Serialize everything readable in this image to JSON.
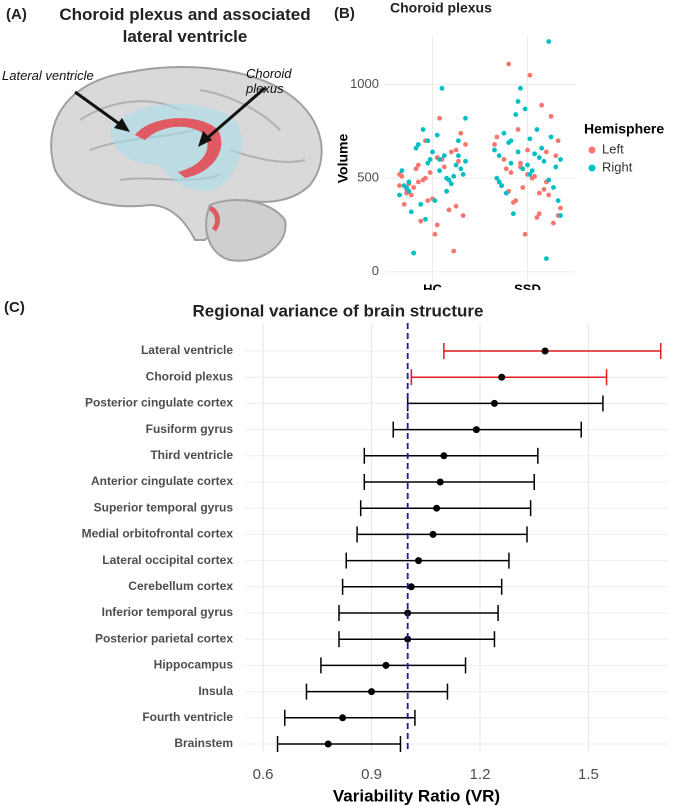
{
  "illustration": {
    "label": "(A)",
    "title": "Choroid plexus and associated lateral ventricle",
    "annotations": [
      "Lateral ventricle",
      "Choroid plexus"
    ]
  },
  "chart_data": [
    {
      "type": "strip",
      "label": "(B)",
      "title": "Choroid plexus",
      "ylabel": "Volume",
      "legend_title": "Hemisphere",
      "categories": [
        "HC",
        "SSD"
      ],
      "ylim": [
        -55,
        1265
      ],
      "yticks": [
        0,
        500,
        1000
      ],
      "grid": true,
      "series": [
        {
          "name": "Left",
          "color": "#f8766d",
          "values": [
            [
              520,
              480,
              610,
              350,
              420,
              700,
              560,
              300,
              450,
              390,
              640,
              510,
              270,
              820,
              590,
              470,
              380,
              430,
              680,
              550,
              200,
              110,
              360,
              490,
              600,
              740,
              410,
              530,
              330,
              460,
              570,
              250,
              650,
              440,
              500
            ],
            [
              560,
              420,
              300,
              1110,
              650,
              480,
              720,
              380,
              510,
              260,
              600,
              450,
              890,
              340,
              530,
              1050,
              410,
              480,
              760,
              290,
              620,
              550,
              200,
              440,
              680,
              370,
              500,
              830,
              460,
              580,
              310,
              700,
              430,
              520,
              640
            ]
          ]
        },
        {
          "name": "Right",
          "color": "#00bfc4",
          "values": [
            [
              540,
              620,
              480,
              700,
              430,
              590,
              660,
              380,
              510,
              460,
              760,
              980,
              550,
              320,
              600,
              490,
              410,
              680,
              730,
              570,
              450,
              280,
              620,
              520,
              100,
              640,
              470,
              540,
              360,
              600,
              700,
              430,
              580,
              500,
              820
            ],
            [
              600,
              700,
              520,
              1230,
              480,
              640,
              760,
              560,
              420,
              870,
              590,
              650,
              310,
              540,
              720,
              460,
              980,
              610,
              380,
              690,
              570,
              70,
              500,
              840,
              630,
              450,
              740,
              550,
              660,
              300,
              580,
              710,
              490,
              620,
              910
            ]
          ]
        }
      ]
    },
    {
      "type": "forest",
      "label": "(C)",
      "title": "Regional variance of brain structure",
      "xlabel": "Variability Ratio (VR)",
      "categories": [
        "Lateral ventricle",
        "Choroid plexus",
        "Posterior cingulate cortex",
        "Fusiform gyrus",
        "Third ventricle",
        "Anterior cingulate cortex",
        "Superior temporal gyrus",
        "Medial orbitofrontal cortex",
        "Lateral occipital cortex",
        "Cerebellum cortex",
        "Inferior temporal gyrus",
        "Posterior parietal cortex",
        "Hippocampus",
        "Insula",
        "Fourth ventricle",
        "Brainstem"
      ],
      "values": [
        1.38,
        1.26,
        1.24,
        1.19,
        1.1,
        1.09,
        1.08,
        1.07,
        1.03,
        1.01,
        1.0,
        1.0,
        0.94,
        0.9,
        0.82,
        0.78
      ],
      "lower": [
        1.1,
        1.01,
        1.0,
        0.96,
        0.88,
        0.88,
        0.87,
        0.86,
        0.83,
        0.82,
        0.81,
        0.81,
        0.76,
        0.72,
        0.66,
        0.64
      ],
      "upper": [
        1.7,
        1.55,
        1.54,
        1.48,
        1.36,
        1.35,
        1.34,
        1.33,
        1.28,
        1.26,
        1.25,
        1.24,
        1.16,
        1.11,
        1.02,
        0.98
      ],
      "colors": [
        "#e41a1c",
        "#e41a1c",
        "#000000",
        "#000000",
        "#000000",
        "#000000",
        "#000000",
        "#000000",
        "#000000",
        "#000000",
        "#000000",
        "#000000",
        "#000000",
        "#000000",
        "#000000",
        "#000000"
      ],
      "reference_line": 1.0,
      "reference_color": "#1a1aa6",
      "xlim": [
        0.55,
        1.72
      ],
      "xticks": [
        0.6,
        0.9,
        1.2,
        1.5
      ],
      "grid": true
    }
  ]
}
